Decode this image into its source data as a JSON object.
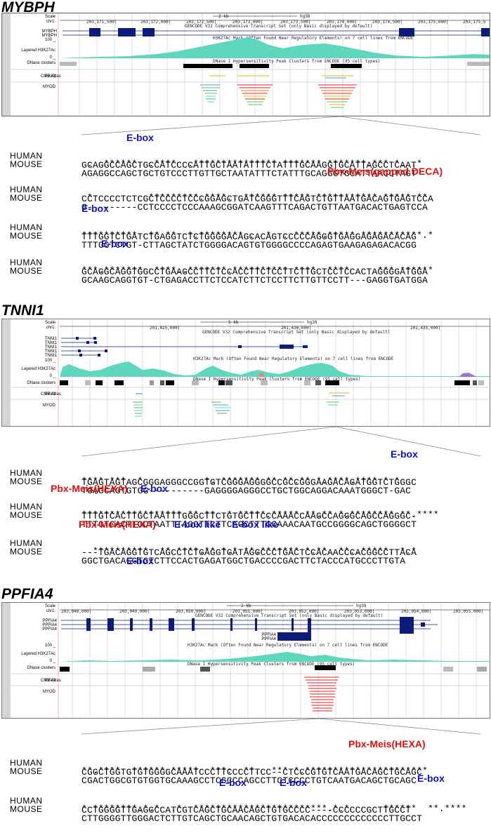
{
  "panels": [
    {
      "gene": "MYBPH",
      "browser": {
        "scale_label": "Scale",
        "chr_label": "chr1:",
        "scale_bar": "2 kb",
        "assembly": "hg38",
        "coords": [
          "203,171,500|",
          "203,172,000|",
          "203,172,500|",
          "203,173,000|",
          "203,173,500|",
          "203,174,000|",
          "203,174,500|",
          "203,175,000|",
          "203,175,5"
        ],
        "gencode_caption": "GENCODE V32 Comprehensive Transcript Set (only Basic displayed by default)",
        "genes": [
          "MYBPH",
          "MYBPH"
        ],
        "h3k27ac_caption": "H3K27Ac Mark (Often Found Near Regulatory Elements) on 7 cell lines from ENCODE",
        "dnase_caption": "DNase I Hypersensitivity Peak Clusters from ENCODE (95 cell types)",
        "track_labels": {
          "layered": "Layered H3K27Ac",
          "max": "100 _",
          "zero": "0 _",
          "dnase": "DNase clusters",
          "chip": "ChIP-Atlas",
          "pbx1": "PBX1",
          "myod": "MYOD"
        }
      },
      "alignment": [
        {
          "human": "GCAGGCCAGCTGCCATCCCCATTGCTAATATTTCTATTTGCAAGGTGCATTAGCCTCAAT",
          "mouse": "AGAGGCCAGCTGCTGTCCCTTGTTGCTAATATTTCTATTTGCAGGGTGCATTAACCTAGT",
          "stars": " .  ******. .****  .*************** ******* *******.*** *. .*"
        },
        {
          "human": "CCTCCCCTCTCGCTCCCCTCCCGGAGCTGATCGGGTTTCAGTCTGTTAATGACAGTGAGTCCA",
          "mouse": "G---------CCTCCCCTCCCAAAGCGGATCAAGTTTCAGACTGTTAATGACACTGAGTCCA",
          "stars": " *          *********.****.. ****** ***** *********** ***** **"
        },
        {
          "human": "TTTGGTCTGATCTGAGGTCTCTGGGGACAGCACAGTCCCCCAGGGTGAGGAGAGACACAG",
          "mouse": "TTTGGTCTGT-CTTAGCTATCTGGGGACAGTGTGGGGCCCCAGAGTGAAGAGAGACACGG",
          "stars": "**********  ** **  *.******** .  *  . *****.***** ***********.*"
        },
        {
          "human": "GCAGGCAGGTGGCCTGAAGCCTTCTCCACCTTCTCCTTCTTGCTCCTCCACTAGGGGATGGA",
          "mouse": "GCAAGCAGGTGT-CTGAGACCTTCTCCATCTTCTCCTTCTTGTTCCTT---GAGGTGATGGA",
          "stars": "***.*******  ****..*******.********** ****  ****     *** ******"
        }
      ],
      "annotations": [
        "E-box",
        "Pbx-Meis(gapped DECA)",
        "E-box",
        "E-box"
      ]
    },
    {
      "gene": "TNNI1",
      "browser": {
        "scale_label": "Scale",
        "chr_label": "chr1:",
        "scale_bar": "5 kb",
        "assembly": "hg38",
        "coords": [
          "201,425,000|",
          "201,430,000|",
          "201,435,000|"
        ],
        "gencode_caption": "GENCODE V32 Comprehensive Transcript Set (only Basic displayed by default)",
        "genes": [
          "TNNI1",
          "TNNI1",
          "TNNI1",
          "TNNI1",
          "TNNI1"
        ],
        "h3k27ac_caption": "H3K27Ac Mark (Often Found Near Regulatory Elements) on 7 cell lines from ENCODE",
        "dnase_caption": "DNase I Hypersensitivity Peak Clusters from ENCODE (95 cell types)",
        "track_labels": {
          "layered": "Layered H3K27Ac",
          "max": "100 _",
          "zero": "0 _",
          "dnase": "DNase clusters",
          "chip": "ChIP-Atlas",
          "pbx1": "PBX1",
          "myod": "MYOD"
        }
      },
      "alignment": [
        {
          "human": "TGAGTAGTAGCGGGAGGGCCGGTGTCGGGAGGGGCCGCCGGGAAGACAGATGGTCTGGGC",
          "mouse": "TGAGCAGTGTGG----------GAGGGGAGGGCCTGCTGGCAGGACAAATGGGCT-GAC",
          "stars": "**** ***  *           *. ******* ** **.** *.****.**** *.*"
        },
        {
          "human": "TTTGTCACTTGCTAATTTGGGCTTCTGTGCTTCCCAAACCAAGCCAGGGCAGCCAGGGC-",
          "mouse": "TTTGTCACTTGCTAATTTAGGTTCTTCAGCTTTCCAAACAATGCCGGGGCAGCTGGGGCT",
          "stars": "****************** ** ** .* *****.***** **.** *.******** **.****"
        },
        {
          "human": "---TGACAGGTGTCAGCCTCTGAGGTGATAGGCCCTGACTCCACAACCCACGGCCTTACA",
          "mouse": "GGCTGACAGGTGTCTTCCACTGAGATGGCTGACCCCGACTTCTACCCATGCCCTTGTA",
          "stars": "  **********  ** ****.** *.* **.******* *.**  **..*****. *.*"
        }
      ],
      "annotations": [
        "E-box",
        "Pbx-Meis(HEXA)",
        "E-box",
        "Pbx-Meis(HEXA)",
        "E-box like",
        "E-box like",
        "E-box"
      ]
    },
    {
      "gene": "PPFIA4",
      "browser": {
        "scale_label": "Scale",
        "chr_label": "chr1:",
        "scale_bar": "2 kb",
        "assembly": "hg38",
        "coords": [
          "203,048,000|",
          "203,049,000|",
          "203,050,000|",
          "203,051,000|",
          "203,052,000|",
          "203,053,000|",
          "203,054,000|",
          "203,055,000|"
        ],
        "gencode_caption": "GENCODE V32 Comprehensive Transcript Set (only Basic displayed by default)",
        "genes": [
          "PPFIA4",
          "PPFIA4",
          "PPFIA4"
        ],
        "inner_genes": [
          "PPFIA4",
          "PPFIA4"
        ],
        "h3k27ac_caption": "H3K27Ac Mark (Often Found Near Regulatory Elements) on 7 cell lines from ENCODE",
        "dnase_caption": "DNase I Hypersensitivity Peak Clusters from ENCODE (95 cell types)",
        "track_labels": {
          "layered": "Layered H3K27Ac",
          "max": "100 _",
          "zero": "0 _",
          "dnase": "DNase clusters",
          "chip": "ChIP-Atlas",
          "pbx1": "PBX1",
          "myod": "MYOD"
        }
      },
      "alignment": [
        {
          "human": "CGGCTGGTGTGTGGGGCAAATCCCTTCCCCTTCC--CTCCCGTGTCAATGACAGCTGCAGC",
          "mouse": "CGACTGGCGTGTGGTGCAAAGCCTCGCCCAGCCTTCTCCCCTGTCAATGACAGCTGCAGC",
          "stars": "**.****  ****** *****  ***:  **.  *** *.**********************"
        },
        {
          "human": "CCTGGGGTTGAGGCCATCGTCAGCTGCAACAGCTGTGCCCC----CCCCCCGCTTGCCT",
          "mouse": "CTTGGGGTTGGGACTCTTGTCAGCTGCAACAGCTGTGACACACCCCCCCCCCCCCTTGCCT",
          "stars": "* ********.*.*  .*  ************************.*.*      ******  **.****"
        }
      ],
      "annotations": [
        "Pbx-Meis(HEXA)",
        "E-box",
        "E-box",
        "E-box"
      ]
    }
  ],
  "labels": {
    "human": "HUMAN",
    "mouse": "MOUSE"
  },
  "colors": {
    "h3k27ac": "#5fd7bd",
    "gene": "#0d1b7a",
    "ebox": "#1010c8",
    "pbx": "#e01010"
  }
}
